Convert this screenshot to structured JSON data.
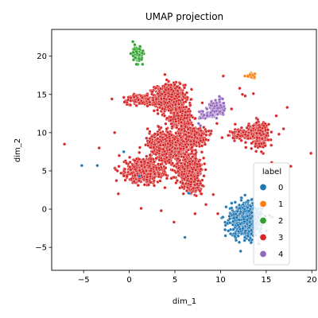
{
  "chart_data": {
    "type": "scatter",
    "title": "UMAP projection",
    "xlabel": "dim_1",
    "ylabel": "dim_2",
    "xlim": [
      -8.5,
      20.5
    ],
    "ylim": [
      -8,
      23.5
    ],
    "xticks": [
      -5,
      0,
      5,
      10,
      15,
      20
    ],
    "yticks": [
      -5,
      0,
      5,
      10,
      15,
      20
    ],
    "grid": false,
    "legend": {
      "title": "label",
      "placement": "lower-right"
    },
    "series": [
      {
        "name": "0",
        "color": "#1f77b4",
        "clusters": [
          {
            "center": [
              12.8,
              -1.4
            ],
            "spread": [
              1.4,
              1.7
            ],
            "count": 700
          }
        ],
        "points": [
          [
            11.6,
            0.9
          ],
          [
            13.0,
            1.1
          ],
          [
            6.1,
            -3.7
          ],
          [
            6.5,
            2.1
          ],
          [
            1.1,
            4.3
          ],
          [
            -3.5,
            5.7
          ],
          [
            -5.2,
            5.7
          ],
          [
            -0.6,
            7.5
          ],
          [
            12.2,
            -5.5
          ],
          [
            14.5,
            -3.8
          ]
        ]
      },
      {
        "name": "1",
        "color": "#ff7f0e",
        "clusters": [
          {
            "center": [
              13.3,
              17.5
            ],
            "spread": [
              0.35,
              0.2
            ],
            "count": 25
          }
        ],
        "points": []
      },
      {
        "name": "2",
        "color": "#2ca02c",
        "clusters": [
          {
            "center": [
              0.9,
              20.2
            ],
            "spread": [
              0.45,
              0.75
            ],
            "count": 120
          }
        ],
        "points": [
          [
            0.4,
            21.9
          ],
          [
            0.6,
            21.5
          ]
        ]
      },
      {
        "name": "3",
        "color": "#d62728",
        "clusters": [
          {
            "center": [
              4.4,
              14.5
            ],
            "spread": [
              1.3,
              1.4
            ],
            "count": 700
          },
          {
            "center": [
              1.3,
              14.3
            ],
            "spread": [
              1.2,
              0.5
            ],
            "count": 200
          },
          {
            "center": [
              5.8,
              12.0
            ],
            "spread": [
              1.0,
              1.3
            ],
            "count": 300
          },
          {
            "center": [
              4.5,
              8.3
            ],
            "spread": [
              1.8,
              1.6
            ],
            "count": 700
          },
          {
            "center": [
              7.2,
              9.5
            ],
            "spread": [
              1.0,
              1.0
            ],
            "count": 250
          },
          {
            "center": [
              1.6,
              5.0
            ],
            "spread": [
              1.6,
              1.2
            ],
            "count": 600
          },
          {
            "center": [
              6.6,
              5.0
            ],
            "spread": [
              1.2,
              1.4
            ],
            "count": 400
          },
          {
            "center": [
              7.0,
              3.3
            ],
            "spread": [
              0.7,
              0.9
            ],
            "count": 150
          },
          {
            "center": [
              14.1,
              9.9
            ],
            "spread": [
              0.9,
              1.2
            ],
            "count": 300
          },
          {
            "center": [
              12.4,
              9.8
            ],
            "spread": [
              1.0,
              0.5
            ],
            "count": 120
          }
        ],
        "points": [
          [
            -7.1,
            8.5
          ],
          [
            -3.3,
            8.0
          ],
          [
            -1.6,
            10.0
          ],
          [
            -1.9,
            14.4
          ],
          [
            -1.3,
            5.0
          ],
          [
            -1.1,
            7.0
          ],
          [
            -1.2,
            2.0
          ],
          [
            -0.3,
            6.0
          ],
          [
            1.1,
            7.4
          ],
          [
            2.0,
            10.5
          ],
          [
            2.2,
            5.6
          ],
          [
            3.9,
            2.8
          ],
          [
            1.3,
            0.1
          ],
          [
            3.5,
            -0.2
          ],
          [
            4.9,
            -1.7
          ],
          [
            7.2,
            -0.6
          ],
          [
            7.9,
            2.0
          ],
          [
            9.7,
            -0.6
          ],
          [
            9.2,
            1.9
          ],
          [
            8.4,
            0.6
          ],
          [
            3.9,
            17.6
          ],
          [
            4.1,
            16.9
          ],
          [
            9.6,
            11.2
          ],
          [
            11.2,
            13.1
          ],
          [
            12.1,
            15.8
          ],
          [
            12.4,
            15.0
          ],
          [
            12.7,
            14.8
          ],
          [
            13.8,
            8.2
          ],
          [
            14.9,
            8.3
          ],
          [
            15.6,
            6.1
          ],
          [
            16.1,
            12.2
          ],
          [
            16.4,
            9.8
          ],
          [
            16.9,
            10.5
          ],
          [
            17.3,
            13.3
          ],
          [
            17.7,
            5.6
          ],
          [
            19.9,
            7.3
          ],
          [
            13.6,
            15.1
          ],
          [
            10.3,
            17.4
          ],
          [
            9.1,
            13.6
          ],
          [
            8.0,
            13.9
          ],
          [
            11.6,
            11.1
          ]
        ]
      },
      {
        "name": "4",
        "color": "#9467bd",
        "clusters": [
          {
            "center": [
              9.6,
              13.2
            ],
            "spread": [
              0.6,
              0.75
            ],
            "count": 220
          },
          {
            "center": [
              8.6,
              12.3
            ],
            "spread": [
              0.6,
              0.35
            ],
            "count": 80
          }
        ],
        "points": [
          [
            7.6,
            11.2
          ],
          [
            7.8,
            10.9
          ]
        ]
      }
    ]
  }
}
